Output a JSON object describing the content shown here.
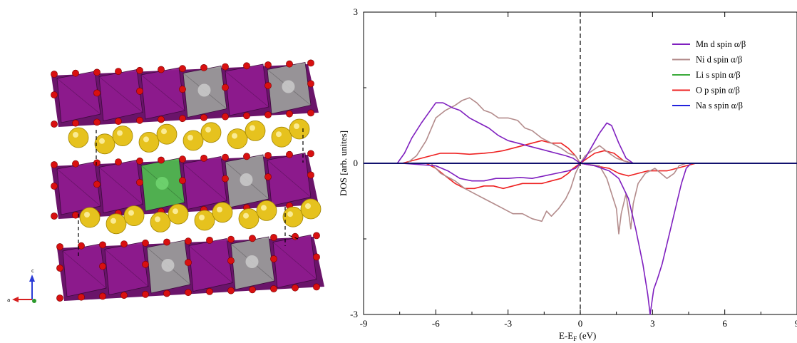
{
  "crystal": {
    "axis_labels": {
      "c": "c",
      "a": "a"
    },
    "colors": {
      "mn_octa": "#8e1b8e",
      "ni_octa": "#9a9a9a",
      "li_octa": "#4fb84f",
      "oxygen": "#d81010",
      "sodium": "#e6c21e"
    }
  },
  "chart_data": {
    "type": "line",
    "title": "",
    "xlabel": "E-E",
    "xlabel_sub": "F",
    "xlabel_unit": " (eV)",
    "ylabel": "DOS [arb. unites]",
    "xlim": [
      -9,
      9
    ],
    "ylim": [
      -3,
      3
    ],
    "xticks": [
      -9,
      -6,
      -3,
      0,
      3,
      6,
      9
    ],
    "xtick_labels": [
      "-9",
      "-6",
      "-3",
      "0",
      "3",
      "6",
      "9"
    ],
    "yticks": [
      -3,
      0,
      3
    ],
    "ytick_labels": [
      "-3",
      "0",
      "3"
    ],
    "fermi_line_x": 0,
    "legend_position": "top-right",
    "series": [
      {
        "name": "Mn d spin α/β",
        "color": "#7f1fbf",
        "up": [
          [
            -9,
            0
          ],
          [
            -7.6,
            0
          ],
          [
            -7.3,
            0.2
          ],
          [
            -7.0,
            0.5
          ],
          [
            -6.6,
            0.8
          ],
          [
            -6.3,
            1.0
          ],
          [
            -6.0,
            1.2
          ],
          [
            -5.7,
            1.2
          ],
          [
            -5.3,
            1.1
          ],
          [
            -5.0,
            1.05
          ],
          [
            -4.6,
            0.9
          ],
          [
            -4.2,
            0.8
          ],
          [
            -3.8,
            0.7
          ],
          [
            -3.4,
            0.55
          ],
          [
            -3.0,
            0.45
          ],
          [
            -2.6,
            0.4
          ],
          [
            -2.2,
            0.35
          ],
          [
            -1.8,
            0.3
          ],
          [
            -1.4,
            0.25
          ],
          [
            -1.0,
            0.2
          ],
          [
            -0.6,
            0.15
          ],
          [
            -0.3,
            0.1
          ],
          [
            0,
            0
          ],
          [
            0.2,
            0.1
          ],
          [
            0.5,
            0.35
          ],
          [
            0.8,
            0.6
          ],
          [
            1.1,
            0.8
          ],
          [
            1.3,
            0.75
          ],
          [
            1.6,
            0.4
          ],
          [
            1.9,
            0.1
          ],
          [
            2.2,
            0
          ],
          [
            9,
            0
          ]
        ],
        "down": [
          [
            -9,
            0
          ],
          [
            -7.4,
            0
          ],
          [
            -6.0,
            -0.05
          ],
          [
            -5.5,
            -0.15
          ],
          [
            -5.0,
            -0.3
          ],
          [
            -4.5,
            -0.35
          ],
          [
            -4.0,
            -0.35
          ],
          [
            -3.5,
            -0.3
          ],
          [
            -3.0,
            -0.3
          ],
          [
            -2.5,
            -0.28
          ],
          [
            -2.0,
            -0.3
          ],
          [
            -1.5,
            -0.25
          ],
          [
            -1.0,
            -0.2
          ],
          [
            -0.5,
            -0.15
          ],
          [
            -0.2,
            -0.1
          ],
          [
            0,
            0
          ],
          [
            0.6,
            -0.05
          ],
          [
            1.2,
            -0.15
          ],
          [
            1.6,
            -0.3
          ],
          [
            2.0,
            -0.7
          ],
          [
            2.3,
            -1.3
          ],
          [
            2.6,
            -2.0
          ],
          [
            2.8,
            -2.6
          ],
          [
            2.9,
            -3.0
          ],
          [
            3.05,
            -2.5
          ],
          [
            3.2,
            -2.3
          ],
          [
            3.4,
            -2.0
          ],
          [
            3.6,
            -1.6
          ],
          [
            3.8,
            -1.2
          ],
          [
            4.0,
            -0.8
          ],
          [
            4.2,
            -0.4
          ],
          [
            4.4,
            -0.1
          ],
          [
            4.6,
            0
          ],
          [
            9,
            0
          ]
        ]
      },
      {
        "name": "Ni d spin α/β",
        "color": "#b38b8b",
        "up": [
          [
            -9,
            0
          ],
          [
            -7.2,
            0
          ],
          [
            -6.8,
            0.15
          ],
          [
            -6.4,
            0.45
          ],
          [
            -6.0,
            0.9
          ],
          [
            -5.6,
            1.05
          ],
          [
            -5.2,
            1.15
          ],
          [
            -4.9,
            1.25
          ],
          [
            -4.6,
            1.3
          ],
          [
            -4.3,
            1.2
          ],
          [
            -4.0,
            1.05
          ],
          [
            -3.7,
            1.0
          ],
          [
            -3.4,
            0.9
          ],
          [
            -3.0,
            0.9
          ],
          [
            -2.6,
            0.85
          ],
          [
            -2.3,
            0.7
          ],
          [
            -2.0,
            0.65
          ],
          [
            -1.6,
            0.5
          ],
          [
            -1.2,
            0.4
          ],
          [
            -0.8,
            0.3
          ],
          [
            -0.5,
            0.2
          ],
          [
            -0.2,
            0.15
          ],
          [
            0,
            0
          ],
          [
            0.2,
            0.15
          ],
          [
            0.5,
            0.25
          ],
          [
            0.8,
            0.35
          ],
          [
            1.2,
            0.2
          ],
          [
            1.5,
            0.1
          ],
          [
            1.8,
            0.05
          ],
          [
            2.2,
            0
          ],
          [
            9,
            0
          ]
        ],
        "down": [
          [
            -9,
            0
          ],
          [
            -6.2,
            0
          ],
          [
            -5.8,
            -0.2
          ],
          [
            -5.2,
            -0.35
          ],
          [
            -4.8,
            -0.5
          ],
          [
            -4.4,
            -0.6
          ],
          [
            -4.0,
            -0.7
          ],
          [
            -3.6,
            -0.8
          ],
          [
            -3.2,
            -0.9
          ],
          [
            -2.8,
            -1.0
          ],
          [
            -2.4,
            -1.0
          ],
          [
            -2.0,
            -1.1
          ],
          [
            -1.6,
            -1.15
          ],
          [
            -1.4,
            -0.95
          ],
          [
            -1.2,
            -1.05
          ],
          [
            -0.9,
            -0.9
          ],
          [
            -0.6,
            -0.7
          ],
          [
            -0.4,
            -0.5
          ],
          [
            -0.2,
            -0.2
          ],
          [
            0,
            0
          ],
          [
            0.8,
            -0.05
          ],
          [
            1.1,
            -0.3
          ],
          [
            1.3,
            -0.6
          ],
          [
            1.5,
            -0.9
          ],
          [
            1.6,
            -1.4
          ],
          [
            1.7,
            -1.0
          ],
          [
            1.9,
            -0.6
          ],
          [
            2.1,
            -1.3
          ],
          [
            2.2,
            -0.8
          ],
          [
            2.4,
            -0.4
          ],
          [
            2.7,
            -0.2
          ],
          [
            3.1,
            -0.1
          ],
          [
            3.6,
            -0.3
          ],
          [
            3.9,
            -0.2
          ],
          [
            4.1,
            -0.05
          ],
          [
            4.4,
            0
          ],
          [
            9,
            0
          ]
        ]
      },
      {
        "name": "Li s spin α/β",
        "color": "#3aaa3a",
        "up": [
          [
            -9,
            0
          ],
          [
            9,
            0
          ]
        ],
        "down": [
          [
            -9,
            0
          ],
          [
            9,
            0
          ]
        ]
      },
      {
        "name": "O p spin α/β",
        "color": "#ee2222",
        "up": [
          [
            -9,
            0
          ],
          [
            -7.4,
            0
          ],
          [
            -7.0,
            0.05
          ],
          [
            -6.6,
            0.1
          ],
          [
            -6.2,
            0.15
          ],
          [
            -5.8,
            0.2
          ],
          [
            -5.2,
            0.2
          ],
          [
            -4.6,
            0.18
          ],
          [
            -4.0,
            0.2
          ],
          [
            -3.6,
            0.22
          ],
          [
            -3.2,
            0.25
          ],
          [
            -2.8,
            0.3
          ],
          [
            -2.4,
            0.35
          ],
          [
            -2.0,
            0.4
          ],
          [
            -1.6,
            0.45
          ],
          [
            -1.2,
            0.4
          ],
          [
            -0.8,
            0.4
          ],
          [
            -0.5,
            0.3
          ],
          [
            -0.2,
            0.15
          ],
          [
            0,
            0
          ],
          [
            0.3,
            0.1
          ],
          [
            0.6,
            0.2
          ],
          [
            1.0,
            0.25
          ],
          [
            1.4,
            0.2
          ],
          [
            1.8,
            0.05
          ],
          [
            2.2,
            0
          ],
          [
            9,
            0
          ]
        ],
        "down": [
          [
            -9,
            0
          ],
          [
            -6.4,
            0
          ],
          [
            -6.0,
            -0.1
          ],
          [
            -5.6,
            -0.25
          ],
          [
            -5.2,
            -0.4
          ],
          [
            -4.8,
            -0.5
          ],
          [
            -4.4,
            -0.5
          ],
          [
            -4.0,
            -0.45
          ],
          [
            -3.6,
            -0.45
          ],
          [
            -3.2,
            -0.5
          ],
          [
            -2.8,
            -0.45
          ],
          [
            -2.4,
            -0.4
          ],
          [
            -2.0,
            -0.4
          ],
          [
            -1.6,
            -0.4
          ],
          [
            -1.2,
            -0.35
          ],
          [
            -0.8,
            -0.3
          ],
          [
            -0.5,
            -0.2
          ],
          [
            -0.3,
            -0.1
          ],
          [
            0,
            0
          ],
          [
            0.6,
            -0.05
          ],
          [
            1.2,
            -0.1
          ],
          [
            1.6,
            -0.2
          ],
          [
            2.0,
            -0.25
          ],
          [
            2.4,
            -0.2
          ],
          [
            2.8,
            -0.15
          ],
          [
            3.2,
            -0.15
          ],
          [
            3.6,
            -0.15
          ],
          [
            4.0,
            -0.1
          ],
          [
            4.4,
            -0.05
          ],
          [
            4.8,
            0
          ],
          [
            9,
            0
          ]
        ]
      },
      {
        "name": "Na s spin α/β",
        "color": "#2222dd",
        "up": [
          [
            -9,
            0
          ],
          [
            9,
            0
          ]
        ],
        "down": [
          [
            -9,
            0
          ],
          [
            9,
            0
          ]
        ]
      }
    ]
  }
}
